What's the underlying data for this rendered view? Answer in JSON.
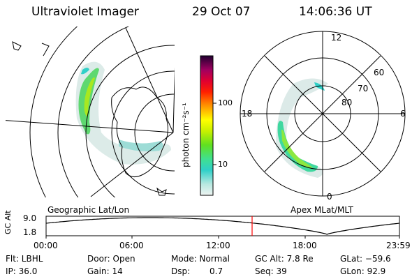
{
  "header": {
    "instrument": "Ultraviolet Imager",
    "date": "29 Oct 07",
    "time": "14:06:36 UT"
  },
  "geo_panel": {
    "label": "Geographic Lat/Lon"
  },
  "apex_panel": {
    "label": "Apex MLat/MLT",
    "mlt_labels": {
      "top": "12",
      "left": "18",
      "right": "6",
      "bottom": "0"
    },
    "lat_labels": [
      "60",
      "70",
      "80"
    ]
  },
  "colorbar": {
    "unit_label": "photon cm⁻²s⁻¹",
    "ticks": [
      "100",
      "10"
    ],
    "colors": [
      "#e8f0ee",
      "#a8e0d8",
      "#30d0c8",
      "#40e080",
      "#60e020",
      "#c8f000",
      "#ffff00",
      "#ffc000",
      "#ff8000",
      "#ff2000",
      "#e00030",
      "#a00060",
      "#600060",
      "#200030"
    ]
  },
  "orbit_plot": {
    "y_axis_label": "GC Alt",
    "y_ticks": [
      "9.0",
      "1.8"
    ],
    "x_ticks": [
      "00:00",
      "06:00",
      "12:00",
      "18:00",
      "23:59"
    ],
    "current_time_marker_color": "#ff0000"
  },
  "status": {
    "filter": "Flt: LBHL",
    "ip": "IP: 36.0",
    "door": "Door: Open",
    "gain": "Gain: 14",
    "mode": "Mode: Normal",
    "dsp": "Dsp:",
    "dsp_value": "0.7",
    "gc_alt": "GC Alt: 7.8 Re",
    "seq": "Seq: 39",
    "glat": "GLat: −59.6",
    "glon": "GLon: 92.9"
  }
}
